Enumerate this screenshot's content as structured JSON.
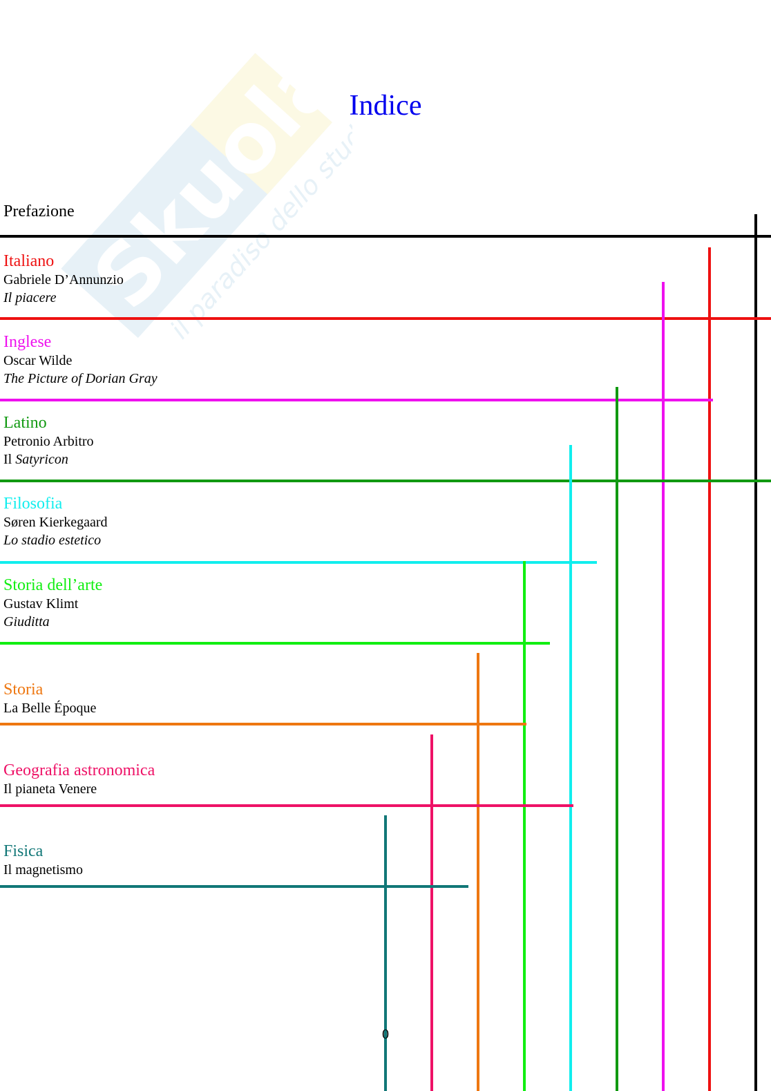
{
  "title": "Indice",
  "watermark": {
    "brand": "Skuola.net",
    "tagline": "il paradiso dello studente"
  },
  "preface": "Prefazione",
  "sections": [
    {
      "subject": "Italiano",
      "color": "#ee1111",
      "line2": "Gabriele D’Annunzio",
      "line3_italic": "Il piacere"
    },
    {
      "subject": "Inglese",
      "color": "#ee11ee",
      "line2": "Oscar Wilde",
      "line3_italic": "The Picture of Dorian Gray"
    },
    {
      "subject": "Latino",
      "color": "#119911",
      "line2": "Petronio Arbitro",
      "line3_prefix": "Il ",
      "line3_italic": "Satyricon"
    },
    {
      "subject": "Filosofia",
      "color": "#11eeee",
      "line2": "Søren Kierkegaard",
      "line3_italic": "Lo stadio estetico"
    },
    {
      "subject": "Storia dell’arte",
      "color": "#11ee11",
      "line2": "Gustav Klimt",
      "line3_italic": "Giuditta"
    },
    {
      "subject": "Storia",
      "color": "#ee7711",
      "line2": "La Belle Époque"
    },
    {
      "subject": "Geografia astronomica",
      "color": "#ee1166",
      "line2": "Il pianeta Venere"
    },
    {
      "subject": "Fisica",
      "color": "#117777",
      "line2": "Il magnetismo"
    }
  ],
  "page_number": "0"
}
